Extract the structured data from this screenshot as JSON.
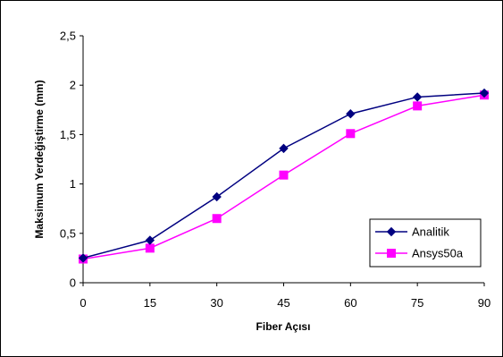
{
  "chart_data": {
    "type": "line",
    "title": "",
    "xlabel": "Fiber Açısı",
    "ylabel": "Maksimum Yerdeğiştirme (mm)",
    "x": [
      0,
      15,
      30,
      45,
      60,
      75,
      90
    ],
    "x_tick_labels": [
      "0",
      "15",
      "30",
      "45",
      "60",
      "75",
      "90"
    ],
    "y_tick_labels": [
      "0",
      "0,5",
      "1",
      "1,5",
      "2",
      "2,5"
    ],
    "xlim": [
      0,
      90
    ],
    "ylim": [
      0,
      2.5
    ],
    "grid": false,
    "legend_position": "bottom-right",
    "series": [
      {
        "name": "Analitik",
        "color": "#000080",
        "marker": "diamond",
        "values": [
          0.25,
          0.43,
          0.87,
          1.36,
          1.71,
          1.88,
          1.92
        ]
      },
      {
        "name": "Ansys50a",
        "color": "#FF00FF",
        "marker": "square",
        "values": [
          0.24,
          0.35,
          0.65,
          1.09,
          1.51,
          1.79,
          1.9
        ]
      }
    ]
  }
}
